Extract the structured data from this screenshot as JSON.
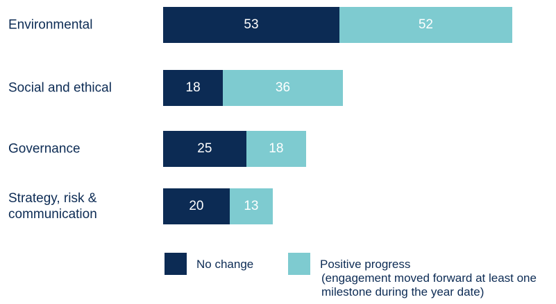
{
  "chart_data": {
    "type": "stacked_bar_horizontal",
    "categories": [
      "Environmental",
      "Social and ethical",
      "Governance",
      "Strategy, risk & communication"
    ],
    "series": [
      {
        "name": "No change",
        "color": "#0c2b54",
        "values": [
          53,
          18,
          25,
          20
        ]
      },
      {
        "name": "Positive progress",
        "color": "#7ecbd0",
        "values": [
          52,
          36,
          18,
          13
        ]
      }
    ],
    "legend_note": "(engagement moved forward at least one milestone during the year date)"
  }
}
